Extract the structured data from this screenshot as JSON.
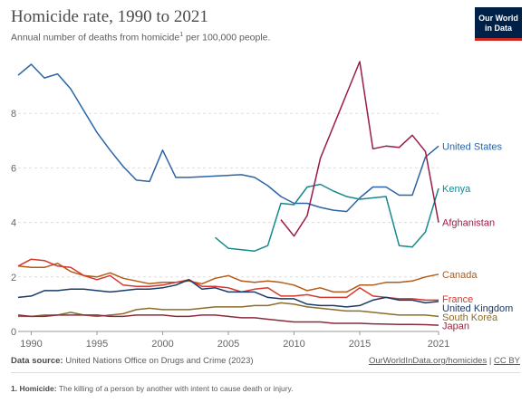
{
  "header": {
    "title": "Homicide rate, 1990 to 2021",
    "subtitle": "Annual number of deaths from homicide",
    "subtitle_sup": "1",
    "subtitle_end": " per 100,000 people.",
    "logo_line1": "Our World",
    "logo_line2": "in Data"
  },
  "footer": {
    "source_label": "Data source:",
    "source_text": " United Nations Office on Drugs and Crime (2023)",
    "link": "OurWorldInData.org/homicides",
    "separator": " | ",
    "license": "CC BY",
    "footnote_label": "1. Homicide:",
    "footnote_text": " The killing of a person by another with intent to cause death or injury."
  },
  "chart_data": {
    "type": "line",
    "title": "Homicide rate, 1990 to 2021",
    "xlim": [
      1989,
      2021
    ],
    "ylim": [
      0,
      10
    ],
    "x_ticks": [
      1990,
      1995,
      2000,
      2005,
      2010,
      2015,
      2021
    ],
    "y_ticks": [
      0,
      2,
      4,
      6,
      8
    ],
    "grid": "horizontal dashed",
    "series": [
      {
        "name": "United States",
        "color": "#2c64a8",
        "label_y": 6.8,
        "x": [
          1989,
          1990,
          1991,
          1992,
          1993,
          1994,
          1995,
          1996,
          1997,
          1998,
          1999,
          2000,
          2001,
          2002,
          2006,
          2007,
          2008,
          2009,
          2010,
          2011,
          2012,
          2013,
          2014,
          2015,
          2016,
          2017,
          2018,
          2019,
          2020,
          2021
        ],
        "y": [
          9.4,
          9.8,
          9.3,
          9.45,
          8.9,
          8.1,
          7.3,
          6.65,
          6.05,
          5.55,
          5.5,
          6.65,
          5.65,
          5.65,
          5.75,
          5.65,
          5.35,
          4.95,
          4.7,
          4.7,
          4.55,
          4.45,
          4.4,
          4.9,
          5.3,
          5.3,
          5.0,
          5.0,
          6.4,
          6.8
        ]
      },
      {
        "name": "Kenya",
        "color": "#18898f",
        "label_y": 5.25,
        "x": [
          2004,
          2005,
          2006,
          2007,
          2008,
          2009,
          2010,
          2011,
          2012,
          2013,
          2014,
          2015,
          2016,
          2017,
          2018,
          2019,
          2020,
          2021
        ],
        "y": [
          3.45,
          3.05,
          3.0,
          2.95,
          3.15,
          4.7,
          4.65,
          5.3,
          5.4,
          5.15,
          4.95,
          4.85,
          4.9,
          4.95,
          3.15,
          3.1,
          3.65,
          5.25
        ]
      },
      {
        "name": "Afghanistan",
        "color": "#9b1a4b",
        "label_y": 4.0,
        "x": [
          2009,
          2010,
          2011,
          2012,
          2015,
          2016,
          2017,
          2018,
          2019,
          2020,
          2021
        ],
        "y": [
          4.1,
          3.5,
          4.25,
          6.35,
          9.9,
          6.7,
          6.8,
          6.75,
          7.2,
          6.6,
          4.0
        ]
      },
      {
        "name": "Canada",
        "color": "#b35a15",
        "label_y": 2.1,
        "x": [
          1989,
          1990,
          1991,
          1992,
          1993,
          1994,
          1995,
          1996,
          1997,
          1998,
          1999,
          2000,
          2001,
          2002,
          2003,
          2004,
          2005,
          2006,
          2007,
          2008,
          2009,
          2010,
          2011,
          2012,
          2013,
          2014,
          2015,
          2016,
          2017,
          2018,
          2019,
          2020,
          2021
        ],
        "y": [
          2.4,
          2.35,
          2.35,
          2.5,
          2.2,
          2.05,
          2.0,
          2.15,
          1.95,
          1.85,
          1.75,
          1.8,
          1.8,
          1.85,
          1.75,
          1.95,
          2.05,
          1.85,
          1.8,
          1.85,
          1.8,
          1.7,
          1.5,
          1.6,
          1.45,
          1.45,
          1.7,
          1.7,
          1.8,
          1.8,
          1.85,
          2.0,
          2.1
        ]
      },
      {
        "name": "France",
        "color": "#d6372e",
        "label_y": 1.2,
        "x": [
          1989,
          1990,
          1991,
          1992,
          1993,
          1994,
          1995,
          1996,
          1997,
          1998,
          1999,
          2000,
          2001,
          2002,
          2003,
          2004,
          2005,
          2006,
          2007,
          2008,
          2009,
          2010,
          2011,
          2012,
          2013,
          2014,
          2015,
          2016,
          2017,
          2018,
          2019,
          2020,
          2021
        ],
        "y": [
          2.4,
          2.65,
          2.6,
          2.4,
          2.35,
          2.05,
          1.9,
          2.05,
          1.7,
          1.65,
          1.65,
          1.7,
          1.8,
          1.9,
          1.65,
          1.65,
          1.6,
          1.45,
          1.55,
          1.6,
          1.3,
          1.3,
          1.35,
          1.25,
          1.25,
          1.25,
          1.6,
          1.3,
          1.25,
          1.2,
          1.2,
          1.15,
          1.15
        ]
      },
      {
        "name": "United Kingdom",
        "color": "#1a3a6b",
        "label_y": 0.87,
        "x": [
          1989,
          1990,
          1991,
          1992,
          1993,
          1994,
          1995,
          1996,
          1997,
          1998,
          1999,
          2000,
          2001,
          2002,
          2003,
          2004,
          2005,
          2006,
          2007,
          2008,
          2009,
          2010,
          2011,
          2012,
          2013,
          2014,
          2015,
          2016,
          2017,
          2018,
          2019,
          2020,
          2021
        ],
        "y": [
          1.25,
          1.3,
          1.5,
          1.5,
          1.55,
          1.55,
          1.5,
          1.45,
          1.5,
          1.55,
          1.55,
          1.6,
          1.7,
          1.9,
          1.55,
          1.6,
          1.45,
          1.45,
          1.45,
          1.25,
          1.2,
          1.2,
          1.0,
          0.95,
          0.95,
          0.9,
          0.95,
          1.15,
          1.25,
          1.15,
          1.15,
          1.05,
          1.1
        ]
      },
      {
        "name": "South Korea",
        "color": "#8c6d2c",
        "label_y": 0.53,
        "x": [
          1989,
          1990,
          1991,
          1992,
          1993,
          1994,
          1995,
          1996,
          1997,
          1998,
          1999,
          2000,
          2001,
          2002,
          2003,
          2004,
          2005,
          2006,
          2007,
          2008,
          2009,
          2010,
          2011,
          2012,
          2013,
          2014,
          2015,
          2016,
          2017,
          2018,
          2019,
          2020,
          2021
        ],
        "y": [
          0.55,
          0.55,
          0.6,
          0.6,
          0.7,
          0.6,
          0.55,
          0.6,
          0.65,
          0.8,
          0.85,
          0.8,
          0.8,
          0.8,
          0.85,
          0.9,
          0.9,
          0.9,
          0.95,
          0.95,
          1.05,
          1.0,
          0.9,
          0.85,
          0.8,
          0.75,
          0.75,
          0.7,
          0.65,
          0.6,
          0.6,
          0.6,
          0.55
        ]
      },
      {
        "name": "Japan",
        "color": "#8a2b3d",
        "label_y": 0.22,
        "x": [
          1989,
          1990,
          1991,
          1992,
          1993,
          1994,
          1995,
          1996,
          1997,
          1998,
          1999,
          2000,
          2001,
          2002,
          2003,
          2004,
          2005,
          2006,
          2007,
          2008,
          2009,
          2010,
          2011,
          2012,
          2013,
          2014,
          2015,
          2016,
          2017,
          2018,
          2019,
          2020,
          2021
        ],
        "y": [
          0.6,
          0.55,
          0.55,
          0.6,
          0.6,
          0.6,
          0.6,
          0.55,
          0.55,
          0.6,
          0.6,
          0.6,
          0.55,
          0.55,
          0.6,
          0.6,
          0.55,
          0.5,
          0.5,
          0.45,
          0.4,
          0.35,
          0.35,
          0.35,
          0.3,
          0.3,
          0.3,
          0.28,
          0.27,
          0.26,
          0.26,
          0.25,
          0.23
        ]
      }
    ]
  }
}
